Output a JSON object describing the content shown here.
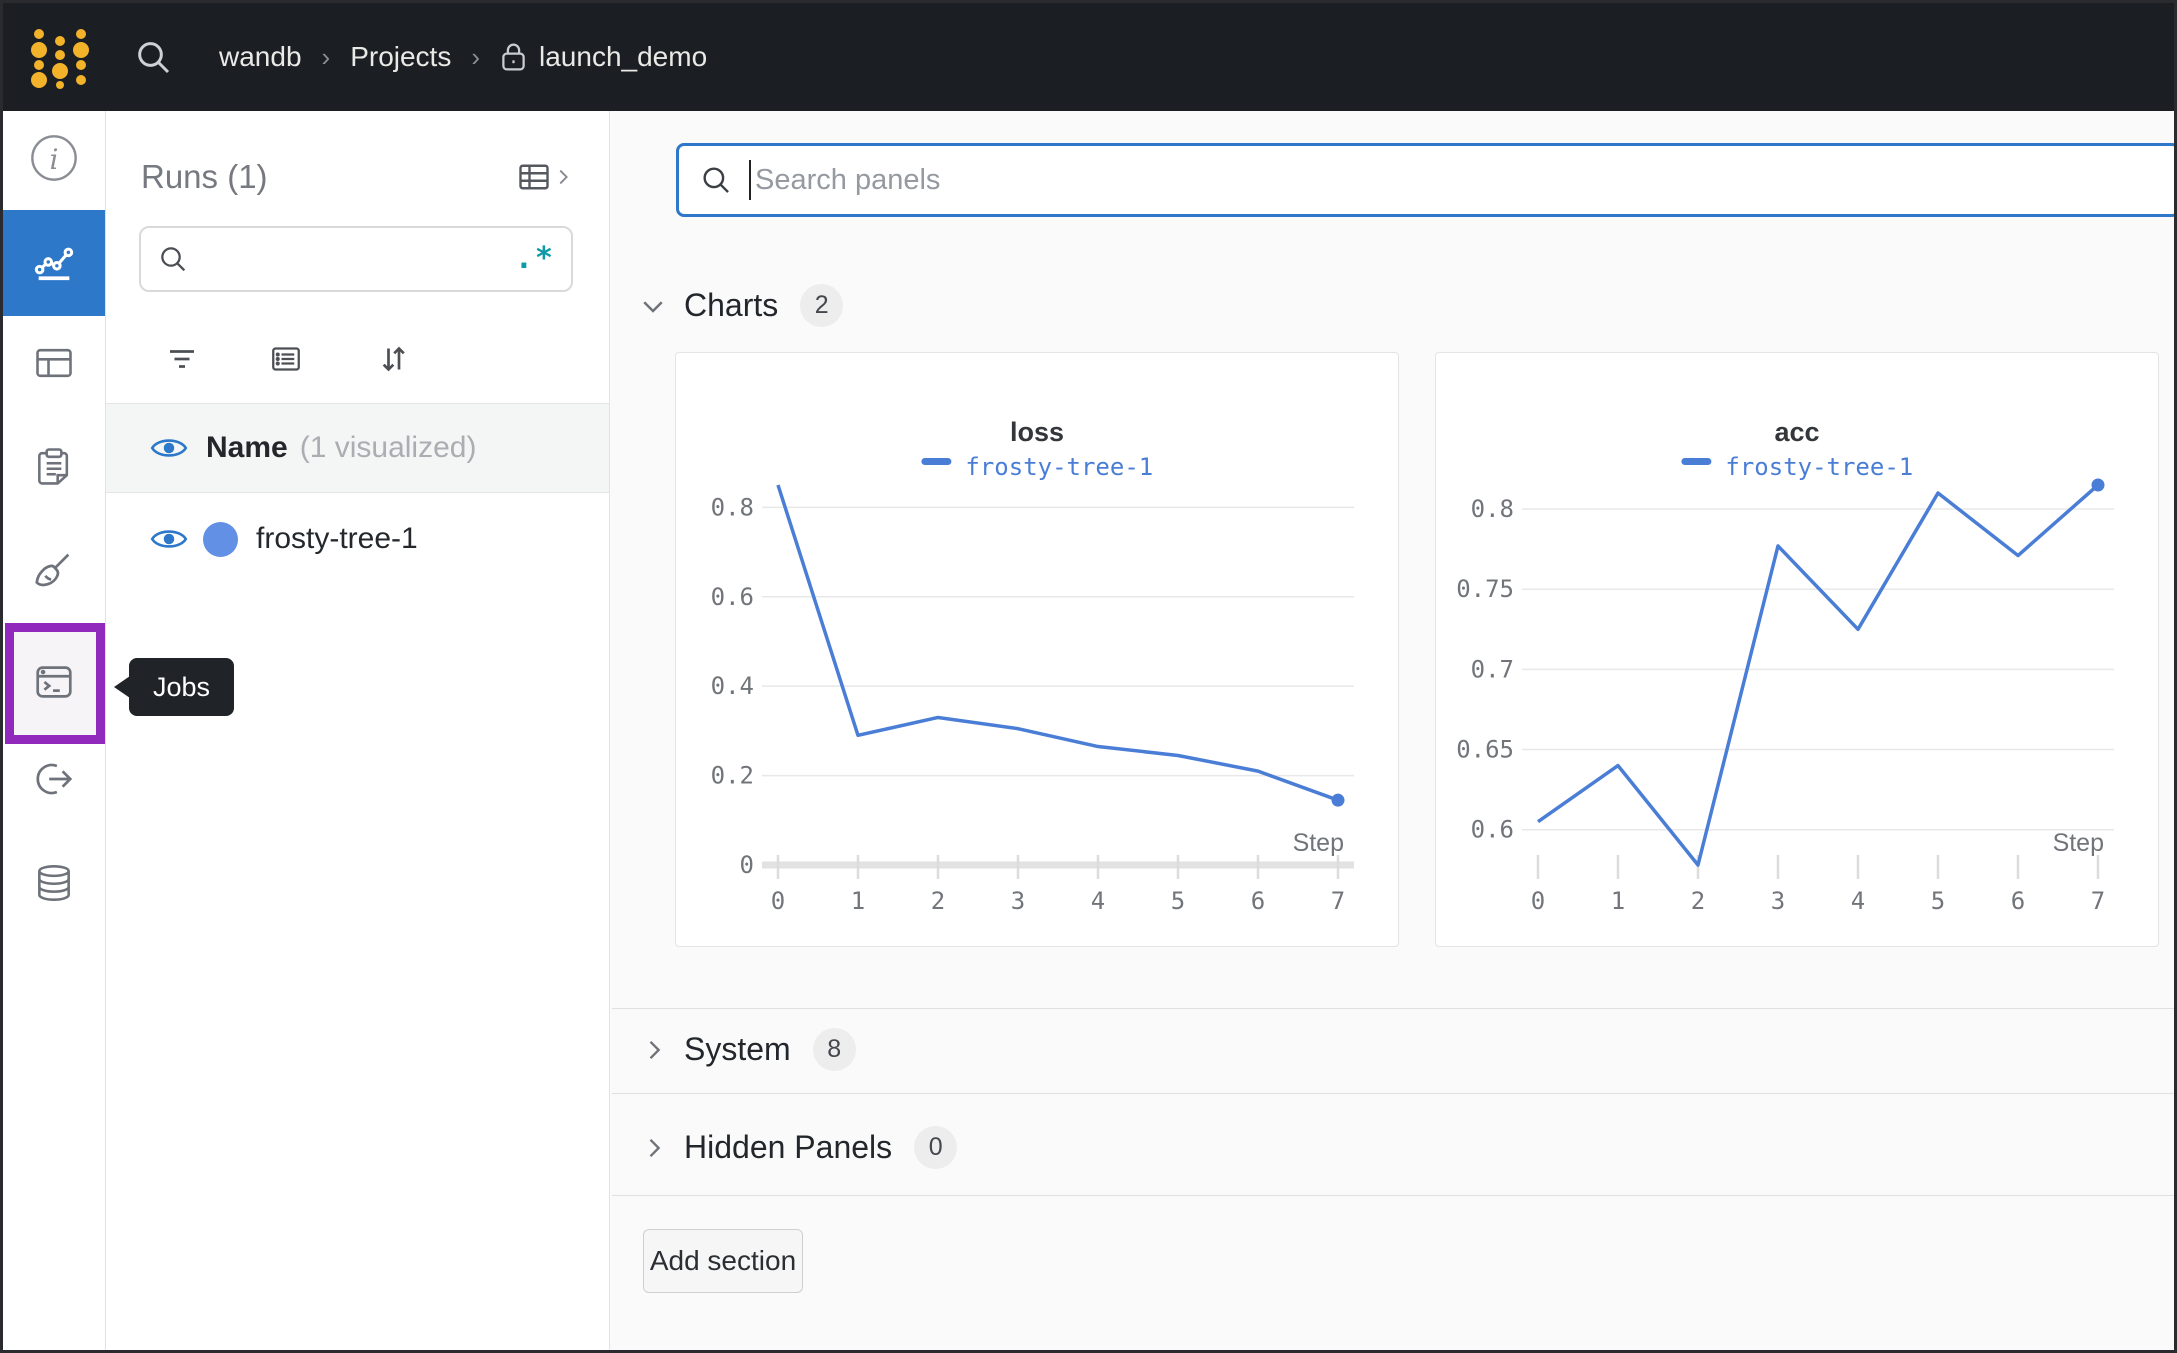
{
  "topbar": {
    "breadcrumb": [
      "wandb",
      "Projects",
      "launch_demo"
    ],
    "separator": "›"
  },
  "sidebar": {
    "tooltip": "Jobs",
    "items": [
      {
        "id": "overview",
        "icon": "info-icon"
      },
      {
        "id": "workspace",
        "icon": "line-chart-icon",
        "active": true
      },
      {
        "id": "table",
        "icon": "table-icon"
      },
      {
        "id": "logs",
        "icon": "clipboard-icon"
      },
      {
        "id": "sweeps",
        "icon": "broom-icon"
      },
      {
        "id": "jobs",
        "icon": "terminal-icon",
        "highlighted": true
      },
      {
        "id": "automations",
        "icon": "link-arrow-icon"
      },
      {
        "id": "artifacts",
        "icon": "database-icon"
      }
    ]
  },
  "runs_panel": {
    "title": "Runs (1)",
    "search_placeholder": "",
    "regex_icon": ".*",
    "header": {
      "name_label": "Name",
      "visualized_label": "(1 visualized)"
    },
    "runs": [
      {
        "name": "frosty-tree-1",
        "dot_color": "#6290e5"
      }
    ]
  },
  "main": {
    "search": {
      "placeholder": "Search panels"
    },
    "sections": [
      {
        "label": "Charts",
        "count": "2",
        "expanded": true
      },
      {
        "label": "System",
        "count": "8",
        "expanded": false
      },
      {
        "label": "Hidden Panels",
        "count": "0",
        "expanded": false
      }
    ],
    "add_section_label": "Add section"
  },
  "chart_data": [
    {
      "type": "line",
      "title": "loss",
      "xlabel": "Step",
      "x": [
        0,
        1,
        2,
        3,
        4,
        5,
        6,
        7
      ],
      "series": [
        {
          "name": "frosty-tree-1",
          "values": [
            0.85,
            0.29,
            0.33,
            0.305,
            0.265,
            0.245,
            0.21,
            0.145
          ]
        }
      ],
      "y_ticks": [
        0,
        0.2,
        0.4,
        0.6,
        0.8
      ],
      "ylim": [
        0,
        0.85
      ],
      "zero_axis": true,
      "grid": true,
      "legend_position": "top",
      "line_color": "#4a7ed6"
    },
    {
      "type": "line",
      "title": "acc",
      "xlabel": "Step",
      "x": [
        0,
        1,
        2,
        3,
        4,
        5,
        6,
        7
      ],
      "series": [
        {
          "name": "frosty-tree-1",
          "values": [
            0.605,
            0.64,
            0.578,
            0.777,
            0.725,
            0.81,
            0.771,
            0.815
          ]
        }
      ],
      "y_ticks": [
        0.6,
        0.65,
        0.7,
        0.75,
        0.8
      ],
      "ylim": [
        0.578,
        0.815
      ],
      "zero_axis": false,
      "grid": true,
      "legend_position": "top",
      "line_color": "#4a7ed6"
    }
  ],
  "colors": {
    "topbar_bg": "#1b1e23",
    "brand_gold": "#f2b32a",
    "active_blue": "#2d78c9",
    "annotation_purple": "#9129bd",
    "run_line_blue": "#4a7ed6",
    "regex_teal": "#0e9aa7",
    "main_bg": "#fafafa"
  }
}
